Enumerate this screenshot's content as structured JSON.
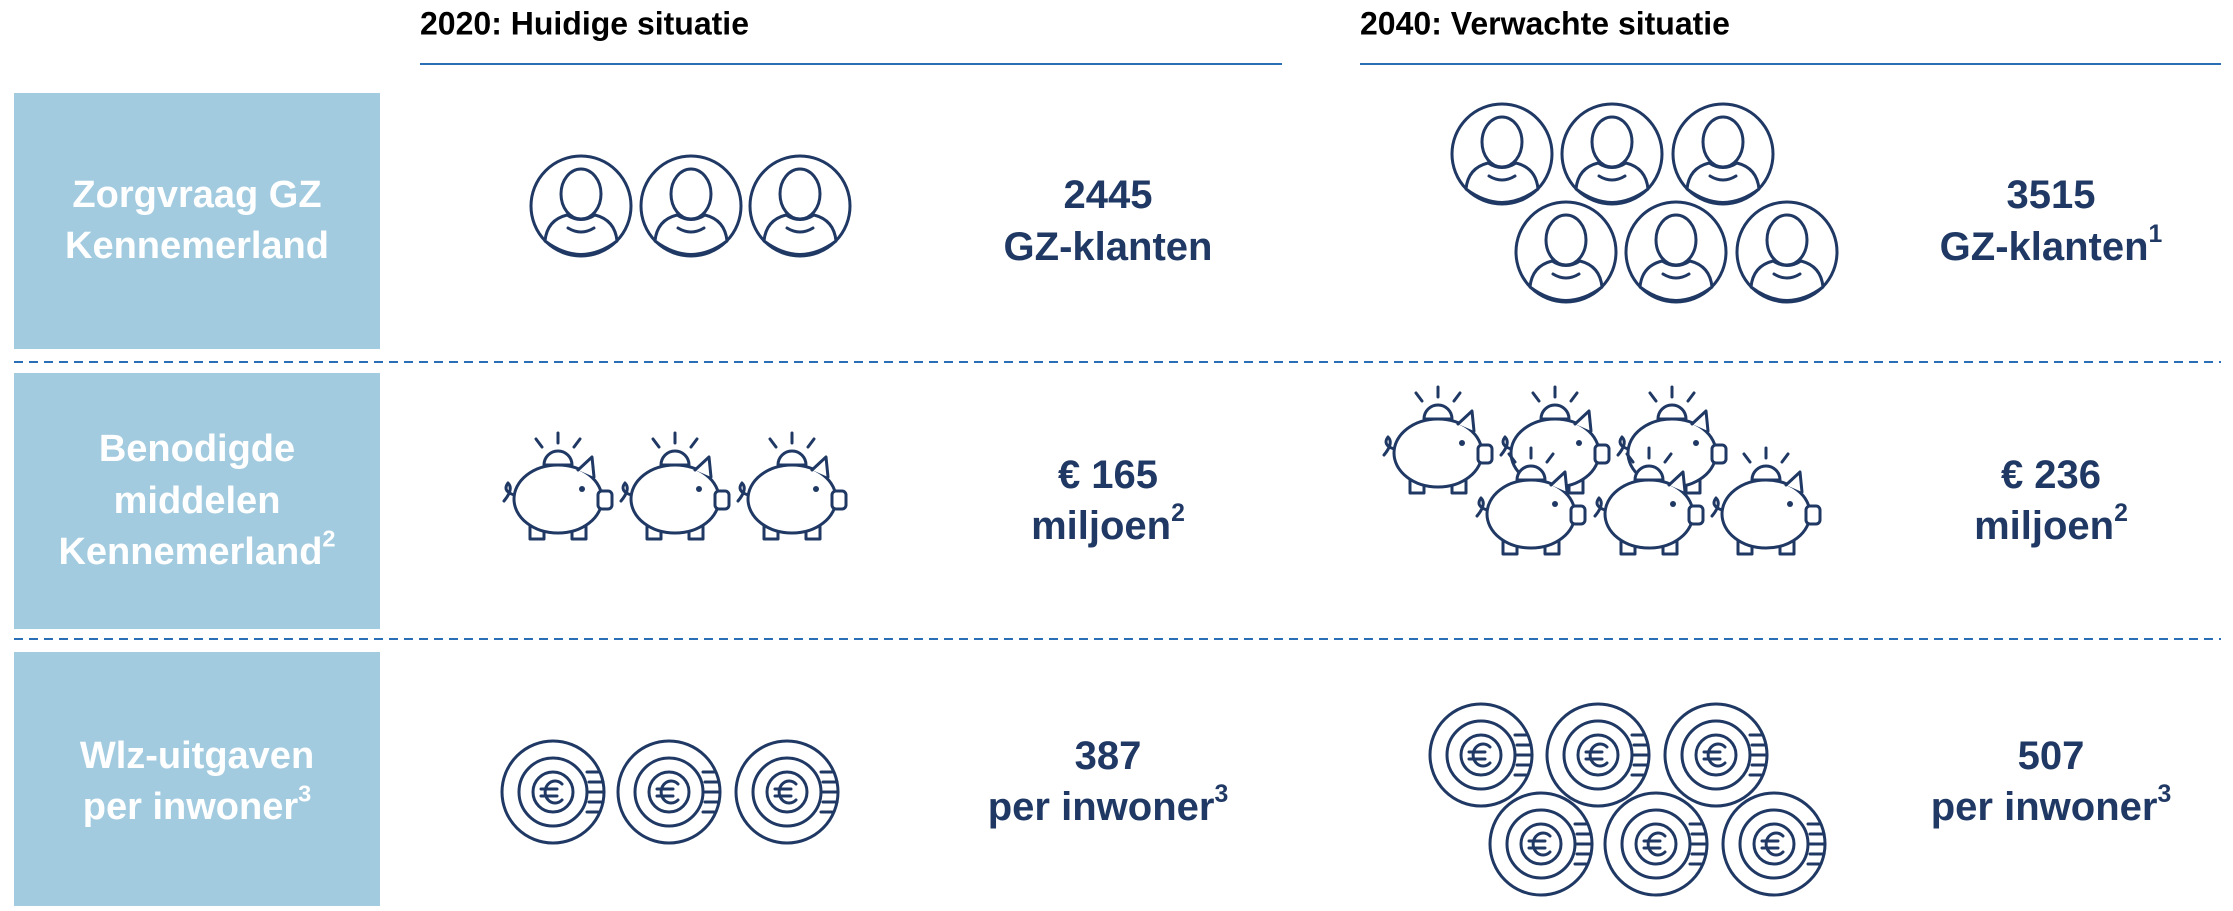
{
  "columns": [
    "2020: Huidige situatie",
    "2040: Verwachte situatie"
  ],
  "rows": [
    {
      "label": {
        "lines": [
          "Zorgvraag GZ",
          "Kennemerland"
        ]
      },
      "cells": [
        {
          "lines": [
            "2445",
            "GZ-klanten"
          ]
        },
        {
          "lines": [
            "3515",
            "GZ-klanten"
          ],
          "note": "1"
        }
      ]
    },
    {
      "label": {
        "lines": [
          "Benodigde",
          "middelen",
          "Kennemerland"
        ],
        "note": "2"
      },
      "cells": [
        {
          "lines": [
            "€ 165",
            "miljoen"
          ],
          "note": "2"
        },
        {
          "lines": [
            "€ 236",
            "miljoen"
          ],
          "note": "2"
        }
      ]
    },
    {
      "label": {
        "lines": [
          "Wlz-uitgaven",
          "per inwoner"
        ],
        "note": "3"
      },
      "cells": [
        {
          "lines": [
            "387",
            "per inwoner"
          ],
          "note": "3"
        },
        {
          "lines": [
            "507",
            "per inwoner"
          ],
          "note": "3"
        }
      ]
    }
  ]
}
